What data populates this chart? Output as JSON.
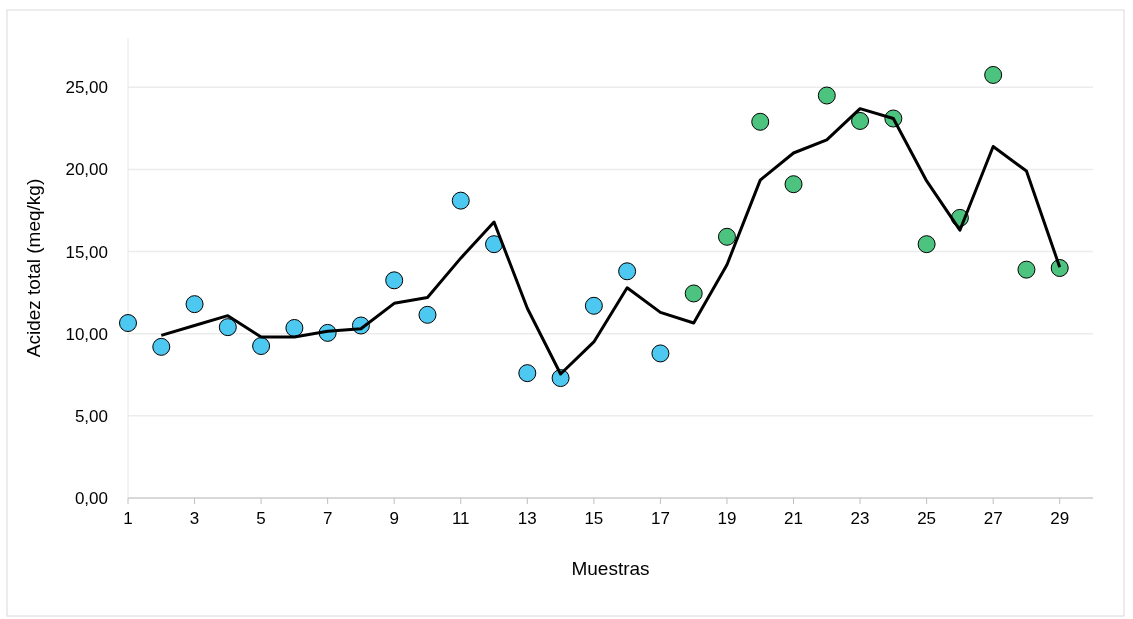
{
  "chart_data": {
    "type": "scatter",
    "xlabel": "Muestras",
    "ylabel": "Acidez  total (meq/kg)",
    "xlim": [
      1,
      30
    ],
    "xticks": [
      1,
      3,
      5,
      7,
      9,
      11,
      13,
      15,
      17,
      19,
      21,
      23,
      25,
      27,
      29
    ],
    "ylim": [
      0,
      28
    ],
    "yticks": [
      {
        "value": 0,
        "label": "0,00"
      },
      {
        "value": 5,
        "label": "5,00"
      },
      {
        "value": 10,
        "label": "10,00"
      },
      {
        "value": 15,
        "label": "15,00"
      },
      {
        "value": 20,
        "label": "20,00"
      },
      {
        "value": 25,
        "label": "25,00"
      }
    ],
    "grid": "y",
    "marker": "circle",
    "series": [
      {
        "color": "#4dc8f0",
        "x": [
          1,
          2,
          3,
          4,
          5,
          6,
          7,
          8,
          9,
          10,
          11,
          12,
          13,
          14,
          15,
          16,
          17
        ],
        "values": [
          10.65,
          9.2,
          11.8,
          10.4,
          9.25,
          10.35,
          10.05,
          10.5,
          13.25,
          11.15,
          18.1,
          15.45,
          7.6,
          7.3,
          11.7,
          13.8,
          8.8
        ]
      },
      {
        "color": "#4cc47f",
        "x": [
          18,
          19,
          20,
          21,
          22,
          23,
          24,
          25,
          26,
          27,
          28,
          29
        ],
        "values": [
          12.45,
          15.9,
          22.9,
          19.1,
          24.5,
          22.95,
          23.1,
          15.45,
          17.05,
          25.75,
          13.9,
          14.0
        ]
      },
      {
        "type": "line",
        "marker": "none",
        "color": "#000000",
        "x": [
          2,
          3,
          4,
          5,
          6,
          7,
          8,
          9,
          10,
          11,
          12,
          13,
          14,
          15,
          16,
          17,
          18,
          19,
          20,
          21,
          22,
          23,
          24,
          25,
          26,
          27,
          28,
          29
        ],
        "values": [
          9.9,
          10.5,
          11.1,
          9.8,
          9.8,
          10.15,
          10.3,
          11.85,
          12.2,
          14.6,
          16.8,
          11.55,
          7.55,
          9.5,
          12.8,
          11.3,
          10.65,
          14.2,
          19.35,
          21.0,
          21.8,
          23.7,
          23.1,
          19.3,
          16.3,
          21.4,
          19.9,
          14.05
        ]
      }
    ]
  }
}
